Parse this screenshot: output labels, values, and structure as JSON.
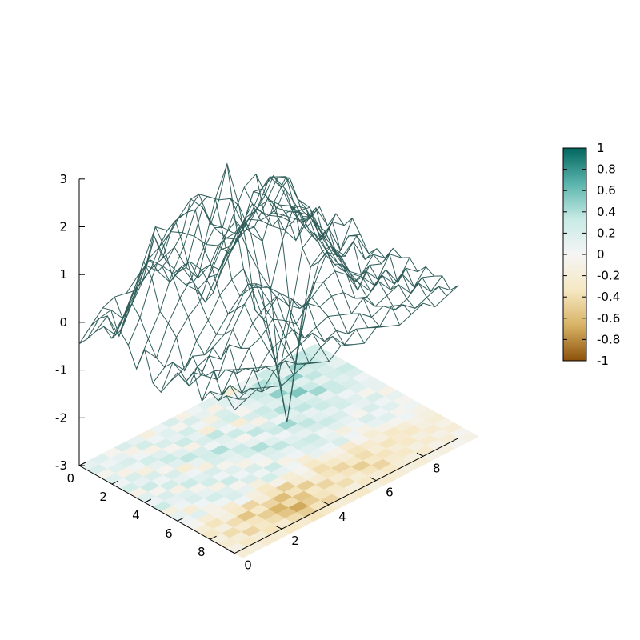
{
  "chart_data": {
    "type": "surface3d",
    "title": "",
    "xlabel": "",
    "ylabel": "",
    "zlabel": "",
    "grid": false,
    "x_range": [
      0,
      9.5
    ],
    "y_range": [
      0,
      9.5
    ],
    "z_range": [
      -3,
      3
    ],
    "x_ticks": [
      0,
      2,
      4,
      6,
      8
    ],
    "y_ticks": [
      0,
      2,
      4,
      6,
      8
    ],
    "z_ticks": [
      -3,
      -2,
      -1,
      0,
      1,
      2,
      3
    ],
    "x_tick_labels": [
      "0",
      "2",
      "4",
      "6",
      "8"
    ],
    "y_tick_labels": [
      "0",
      "2",
      "4",
      "6",
      "8"
    ],
    "z_tick_labels": [
      "-3",
      "-2",
      "-1",
      "0",
      "1",
      "2",
      "3"
    ],
    "grid_step": 0.5,
    "grid_size": 20,
    "heatmap_plane_z": -3,
    "wireframe_color": "#2f5d5a",
    "colorbar": {
      "range": [
        -1,
        1
      ],
      "ticks": [
        1,
        0.8,
        0.6,
        0.4,
        0.2,
        0,
        -0.2,
        -0.4,
        -0.6,
        -0.8,
        -1
      ],
      "tick_labels": [
        "1",
        "0.8",
        "0.6",
        "0.4",
        "0.2",
        "0",
        "-0.2",
        "-0.4",
        "-0.6",
        "-0.8",
        "-1"
      ],
      "palette": [
        "#8c510a",
        "#d8b365",
        "#f6e8c3",
        "#f5f5f5",
        "#c7eae5",
        "#5ab4ac",
        "#01665e"
      ]
    },
    "surface_z": [
      [
        -0.45,
        -0.2,
        0.05,
        0.15,
        0.1,
        0.35,
        0.55,
        0.3,
        0.0,
        -0.35,
        -0.6,
        -0.45,
        0.0,
        0.55,
        1.05,
        1.2,
        0.55,
        0.3,
        0.15,
        -0.2
      ],
      [
        -0.25,
        0.05,
        0.1,
        -0.2,
        0.25,
        0.65,
        0.4,
        0.05,
        0.25,
        -0.2,
        -0.75,
        -0.3,
        0.15,
        0.45,
        0.8,
        0.45,
        0.35,
        0.15,
        -0.05,
        -0.1
      ],
      [
        0.0,
        0.2,
        -0.35,
        0.15,
        0.55,
        1.35,
        0.7,
        0.35,
        0.45,
        0.15,
        -0.45,
        0.15,
        0.55,
        0.7,
        0.55,
        0.3,
        0.1,
        -0.25,
        0.05,
        0.2
      ],
      [
        0.2,
        -0.1,
        0.3,
        0.7,
        0.9,
        1.0,
        1.1,
        0.55,
        0.2,
        0.35,
        0.1,
        0.5,
        0.95,
        1.0,
        0.75,
        0.6,
        0.35,
        0.25,
        0.4,
        -0.1
      ],
      [
        0.05,
        0.4,
        0.9,
        1.3,
        1.45,
        1.65,
        1.5,
        1.3,
        1.0,
        0.85,
        0.55,
        0.9,
        1.6,
        1.4,
        1.0,
        0.8,
        0.65,
        0.45,
        -0.15,
        0.25
      ],
      [
        0.3,
        0.75,
        1.5,
        2.1,
        1.9,
        2.05,
        2.3,
        2.0,
        1.45,
        1.1,
        0.95,
        1.3,
        1.75,
        1.9,
        1.5,
        1.0,
        0.4,
        0.05,
        0.3,
        0.1
      ],
      [
        0.1,
        0.55,
        1.25,
        1.8,
        2.2,
        2.25,
        2.5,
        1.75,
        1.55,
        1.3,
        1.25,
        1.6,
        2.1,
        1.75,
        1.1,
        0.65,
        0.25,
        0.4,
        -0.2,
        0.35
      ],
      [
        -0.3,
        0.2,
        0.65,
        1.3,
        1.75,
        2.4,
        2.55,
        2.35,
        2.25,
        1.6,
        1.4,
        1.8,
        2.2,
        2.05,
        1.25,
        0.9,
        0.55,
        -0.1,
        0.2,
        0.1
      ],
      [
        0.2,
        -0.1,
        0.5,
        0.9,
        1.2,
        1.7,
        2.6,
        3.2,
        2.2,
        1.5,
        1.2,
        1.9,
        2.3,
        1.7,
        1.4,
        0.75,
        0.3,
        0.0,
        0.3,
        -0.2
      ],
      [
        -0.4,
        -0.2,
        0.3,
        0.6,
        0.8,
        1.4,
        1.9,
        2.1,
        1.4,
        0.8,
        0.3,
        1.2,
        1.8,
        1.6,
        1.0,
        0.5,
        0.2,
        0.4,
        -0.1,
        0.0
      ],
      [
        -0.5,
        0.0,
        -0.3,
        0.2,
        0.5,
        0.9,
        1.1,
        1.2,
        0.2,
        -0.2,
        -1.4,
        -0.3,
        1.0,
        1.2,
        0.7,
        0.3,
        0.0,
        -0.2,
        0.1,
        -0.1
      ],
      [
        -0.2,
        -0.1,
        0.1,
        0.0,
        0.3,
        0.6,
        0.85,
        0.9,
        0.1,
        -0.9,
        -2.3,
        -0.8,
        0.7,
        0.9,
        0.5,
        0.2,
        -0.3,
        0.1,
        0.0,
        0.2
      ],
      [
        0.1,
        -0.3,
        -0.2,
        0.25,
        0.4,
        0.8,
        1.2,
        1.0,
        0.5,
        -0.2,
        -1.0,
        0.1,
        0.9,
        1.1,
        0.6,
        0.1,
        0.2,
        -0.1,
        0.3,
        0.1
      ],
      [
        0.0,
        0.2,
        0.3,
        0.1,
        0.6,
        1.0,
        1.3,
        1.1,
        0.85,
        0.6,
        0.3,
        0.7,
        1.2,
        1.0,
        0.5,
        0.3,
        0.0,
        0.2,
        -0.2,
        0.2
      ],
      [
        0.3,
        0.1,
        -0.1,
        0.5,
        0.3,
        0.7,
        0.9,
        1.0,
        0.7,
        0.5,
        0.6,
        0.8,
        0.9,
        0.7,
        0.4,
        0.1,
        0.3,
        0.0,
        0.2,
        0.0
      ],
      [
        -0.2,
        0.3,
        0.2,
        0.0,
        0.4,
        0.5,
        0.75,
        0.6,
        0.4,
        0.7,
        0.5,
        0.6,
        0.55,
        0.3,
        0.2,
        0.4,
        0.1,
        0.3,
        -0.1,
        0.2
      ],
      [
        0.1,
        -0.1,
        0.3,
        0.2,
        0.0,
        0.3,
        0.4,
        0.5,
        0.2,
        0.3,
        0.4,
        0.3,
        0.2,
        0.4,
        0.1,
        0.2,
        0.3,
        0.0,
        0.2,
        0.1
      ],
      [
        0.0,
        0.2,
        -0.1,
        0.3,
        0.2,
        0.1,
        0.2,
        0.3,
        0.4,
        0.1,
        0.2,
        0.0,
        0.3,
        0.1,
        0.2,
        0.0,
        0.1,
        0.3,
        0.0,
        0.2
      ],
      [
        0.2,
        0.0,
        0.1,
        -0.1,
        0.2,
        0.3,
        0.1,
        0.0,
        0.2,
        0.3,
        0.0,
        0.2,
        0.1,
        0.0,
        0.3,
        0.2,
        0.0,
        0.1,
        0.2,
        0.0
      ],
      [
        0.0,
        0.1,
        0.2,
        0.1,
        0.0,
        0.1,
        0.2,
        0.1,
        0.0,
        0.2,
        0.1,
        0.0,
        0.2,
        0.1,
        0.0,
        0.1,
        0.2,
        0.0,
        0.1,
        0.2
      ]
    ],
    "heatmap_values": [
      [
        0.1,
        0.15,
        -0.05,
        0.2,
        0.1,
        -0.15,
        0.05,
        0.2,
        -0.1,
        0.05,
        0.15,
        0.1,
        -0.2,
        0.05,
        0.1,
        0.3,
        0.2,
        0.1,
        0.35,
        0.25
      ],
      [
        0.2,
        0.05,
        0.1,
        -0.1,
        0.25,
        0.05,
        0.15,
        -0.05,
        0.2,
        0.1,
        -0.1,
        0.15,
        0.05,
        0.2,
        0.4,
        0.25,
        0.1,
        0.45,
        0.3,
        0.2
      ],
      [
        -0.05,
        0.15,
        0.2,
        0.05,
        -0.1,
        0.2,
        0.1,
        0.25,
        0.05,
        -0.15,
        0.2,
        0.05,
        0.15,
        0.3,
        0.15,
        0.35,
        0.5,
        0.2,
        0.3,
        0.15
      ],
      [
        0.15,
        -0.1,
        0.05,
        0.25,
        0.15,
        -0.05,
        0.3,
        0.1,
        -0.2,
        0.15,
        0.25,
        -0.05,
        0.1,
        0.2,
        0.5,
        0.3,
        0.15,
        0.35,
        0.2,
        0.1
      ],
      [
        0.05,
        0.2,
        -0.15,
        0.1,
        0.3,
        0.15,
        -0.1,
        0.2,
        0.35,
        0.05,
        -0.2,
        0.2,
        0.3,
        0.15,
        0.25,
        0.55,
        0.3,
        0.1,
        0.25,
        0.3
      ],
      [
        0.25,
        0.1,
        0.2,
        -0.05,
        0.15,
        0.35,
        0.2,
        0.05,
        0.15,
        0.3,
        0.1,
        -0.1,
        0.25,
        0.4,
        0.2,
        0.15,
        0.45,
        0.3,
        0.15,
        0.2
      ],
      [
        -0.1,
        0.3,
        0.05,
        0.2,
        -0.2,
        0.1,
        0.25,
        0.4,
        0.1,
        -0.05,
        0.35,
        0.2,
        0.05,
        0.15,
        0.35,
        0.25,
        0.1,
        0.3,
        0.2,
        0.05
      ],
      [
        0.15,
        -0.05,
        0.25,
        0.1,
        0.05,
        -0.15,
        0.2,
        0.15,
        0.3,
        0.1,
        0.05,
        0.3,
        0.45,
        0.2,
        0.1,
        0.3,
        0.2,
        0.05,
        0.15,
        0.1
      ],
      [
        0.05,
        0.2,
        -0.1,
        0.3,
        0.15,
        0.2,
        -0.05,
        0.1,
        0.25,
        0.4,
        0.15,
        0.05,
        0.2,
        0.35,
        0.15,
        0.1,
        0.25,
        0.15,
        -0.05,
        0.1
      ],
      [
        0.3,
        0.1,
        0.15,
        -0.05,
        0.25,
        0.05,
        0.15,
        -0.1,
        0.05,
        0.2,
        0.35,
        0.15,
        0.1,
        0.2,
        0.3,
        0.2,
        0.05,
        0.1,
        0.2,
        -0.1
      ],
      [
        -0.15,
        0.05,
        0.2,
        0.1,
        -0.1,
        0.3,
        0.05,
        0.2,
        -0.05,
        0.15,
        0.1,
        0.25,
        0.3,
        0.05,
        0.15,
        0.1,
        -0.05,
        0.2,
        0.05,
        0.1
      ],
      [
        0.1,
        -0.2,
        0.05,
        0.25,
        0.15,
        -0.05,
        0.2,
        0.05,
        0.3,
        -0.1,
        0.05,
        0.15,
        0.2,
        0.1,
        -0.15,
        0.05,
        0.2,
        0.05,
        0.15,
        -0.05
      ],
      [
        0.05,
        0.15,
        -0.1,
        0.05,
        0.2,
        0.1,
        -0.15,
        0.25,
        0.1,
        0.05,
        -0.2,
        0.1,
        0.05,
        0.2,
        0.05,
        -0.1,
        0.1,
        0.15,
        -0.05,
        0.05
      ],
      [
        -0.05,
        -0.2,
        -0.1,
        -0.25,
        0.05,
        -0.15,
        -0.3,
        -0.1,
        -0.2,
        -0.05,
        -0.3,
        -0.15,
        -0.1,
        -0.25,
        -0.05,
        -0.2,
        -0.1,
        -0.05,
        0.05,
        -0.1
      ],
      [
        -0.2,
        -0.35,
        -0.15,
        -0.3,
        -0.45,
        -0.2,
        -0.35,
        -0.5,
        -0.25,
        -0.15,
        -0.4,
        -0.3,
        -0.2,
        -0.35,
        -0.25,
        -0.15,
        -0.3,
        -0.2,
        -0.1,
        -0.15
      ],
      [
        -0.3,
        -0.15,
        -0.4,
        -0.55,
        -0.3,
        -0.45,
        -0.6,
        -0.35,
        -0.5,
        -0.25,
        -0.35,
        -0.45,
        -0.3,
        -0.4,
        -0.2,
        -0.35,
        -0.25,
        -0.3,
        -0.15,
        -0.2
      ],
      [
        -0.15,
        -0.4,
        -0.25,
        -0.35,
        -0.5,
        -0.65,
        -0.4,
        -0.55,
        -0.3,
        -0.45,
        -0.25,
        -0.35,
        -0.5,
        -0.3,
        -0.35,
        -0.2,
        -0.3,
        -0.15,
        -0.25,
        -0.1
      ],
      [
        -0.25,
        -0.2,
        -0.45,
        -0.3,
        -0.4,
        -0.55,
        -0.7,
        -0.5,
        -0.35,
        -0.3,
        -0.4,
        -0.2,
        -0.35,
        -0.45,
        -0.25,
        -0.3,
        -0.15,
        -0.25,
        -0.1,
        -0.2
      ],
      [
        -0.1,
        -0.3,
        -0.2,
        -0.35,
        -0.25,
        -0.4,
        -0.5,
        -0.35,
        -0.45,
        -0.25,
        -0.15,
        -0.3,
        -0.2,
        -0.3,
        -0.2,
        -0.15,
        -0.25,
        -0.1,
        -0.2,
        -0.05
      ],
      [
        -0.2,
        -0.15,
        -0.25,
        -0.2,
        -0.3,
        -0.25,
        -0.35,
        -0.3,
        -0.2,
        -0.25,
        -0.3,
        -0.15,
        -0.25,
        -0.2,
        -0.15,
        -0.2,
        -0.1,
        -0.15,
        -0.05,
        -0.1
      ]
    ]
  }
}
